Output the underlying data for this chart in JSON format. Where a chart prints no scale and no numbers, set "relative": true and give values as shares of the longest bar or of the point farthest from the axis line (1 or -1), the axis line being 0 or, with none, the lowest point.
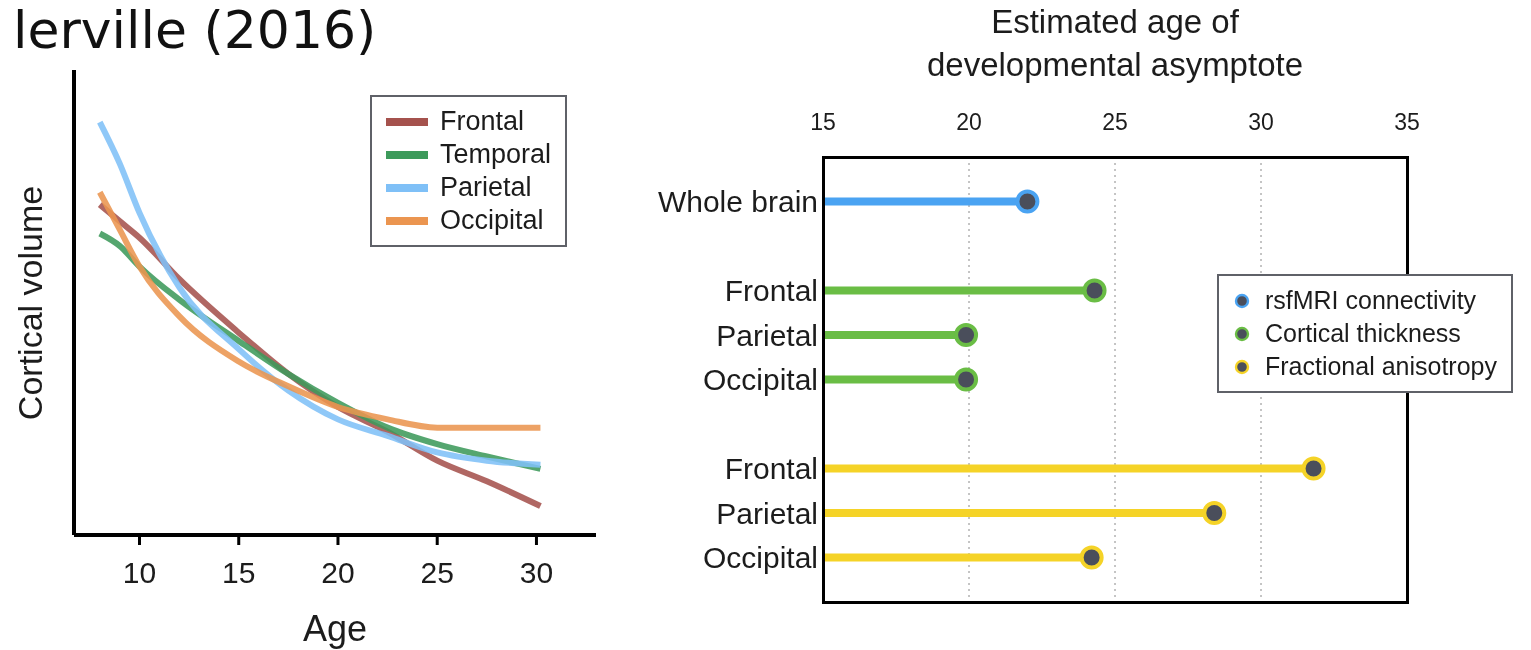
{
  "chart_data": [
    {
      "type": "line",
      "title": "lerville (2016)",
      "xlabel": "Age",
      "ylabel": "Cortical volume",
      "relative": true,
      "x": [
        8,
        9,
        10,
        12,
        15,
        17.5,
        20,
        22.5,
        25,
        27.5,
        30.2
      ],
      "series": [
        {
          "name": "Frontal",
          "color": "#a5524d",
          "values": [
            0.8,
            0.76,
            0.72,
            0.62,
            0.49,
            0.39,
            0.31,
            0.25,
            0.18,
            0.13,
            0.07
          ]
        },
        {
          "name": "Temporal",
          "color": "#3d9a5b",
          "values": [
            0.73,
            0.7,
            0.65,
            0.57,
            0.47,
            0.39,
            0.32,
            0.26,
            0.22,
            0.19,
            0.16
          ]
        },
        {
          "name": "Parietal",
          "color": "#7fc0f7",
          "values": [
            1.0,
            0.9,
            0.78,
            0.6,
            0.45,
            0.35,
            0.28,
            0.24,
            0.2,
            0.18,
            0.17
          ]
        },
        {
          "name": "Occipital",
          "color": "#eb9550",
          "values": [
            0.83,
            0.74,
            0.65,
            0.53,
            0.42,
            0.36,
            0.31,
            0.28,
            0.26,
            0.26,
            0.26
          ]
        }
      ],
      "xlim": [
        6.7,
        33
      ],
      "xticks": [
        10,
        15,
        20,
        25,
        30
      ],
      "legend": "top right"
    },
    {
      "type": "lollipop",
      "orientation": "horizontal",
      "xlabel": "Estimated age of developmental asymptote",
      "categories": [
        "Whole brain",
        null,
        "Frontal",
        "Parietal",
        "Occipital",
        null,
        "Frontal",
        "Parietal",
        "Occipital"
      ],
      "series": [
        {
          "name": "rsfMRI connectivity",
          "color": "#4aa3f2",
          "values": [
            22.0,
            null,
            null,
            null,
            null,
            null,
            null,
            null,
            null
          ]
        },
        {
          "name": "Cortical thickness",
          "color": "#6abd45",
          "values": [
            null,
            null,
            24.3,
            19.9,
            19.9,
            null,
            null,
            null,
            null
          ]
        },
        {
          "name": "Fractional anisotropy",
          "color": "#f5d327",
          "values": [
            null,
            null,
            null,
            null,
            null,
            null,
            31.8,
            28.4,
            24.2
          ]
        }
      ],
      "xlim": [
        15,
        35
      ],
      "xticks": [
        15,
        20,
        25,
        30,
        35
      ],
      "grid": "x",
      "legend": "right",
      "marker": "circle"
    }
  ]
}
